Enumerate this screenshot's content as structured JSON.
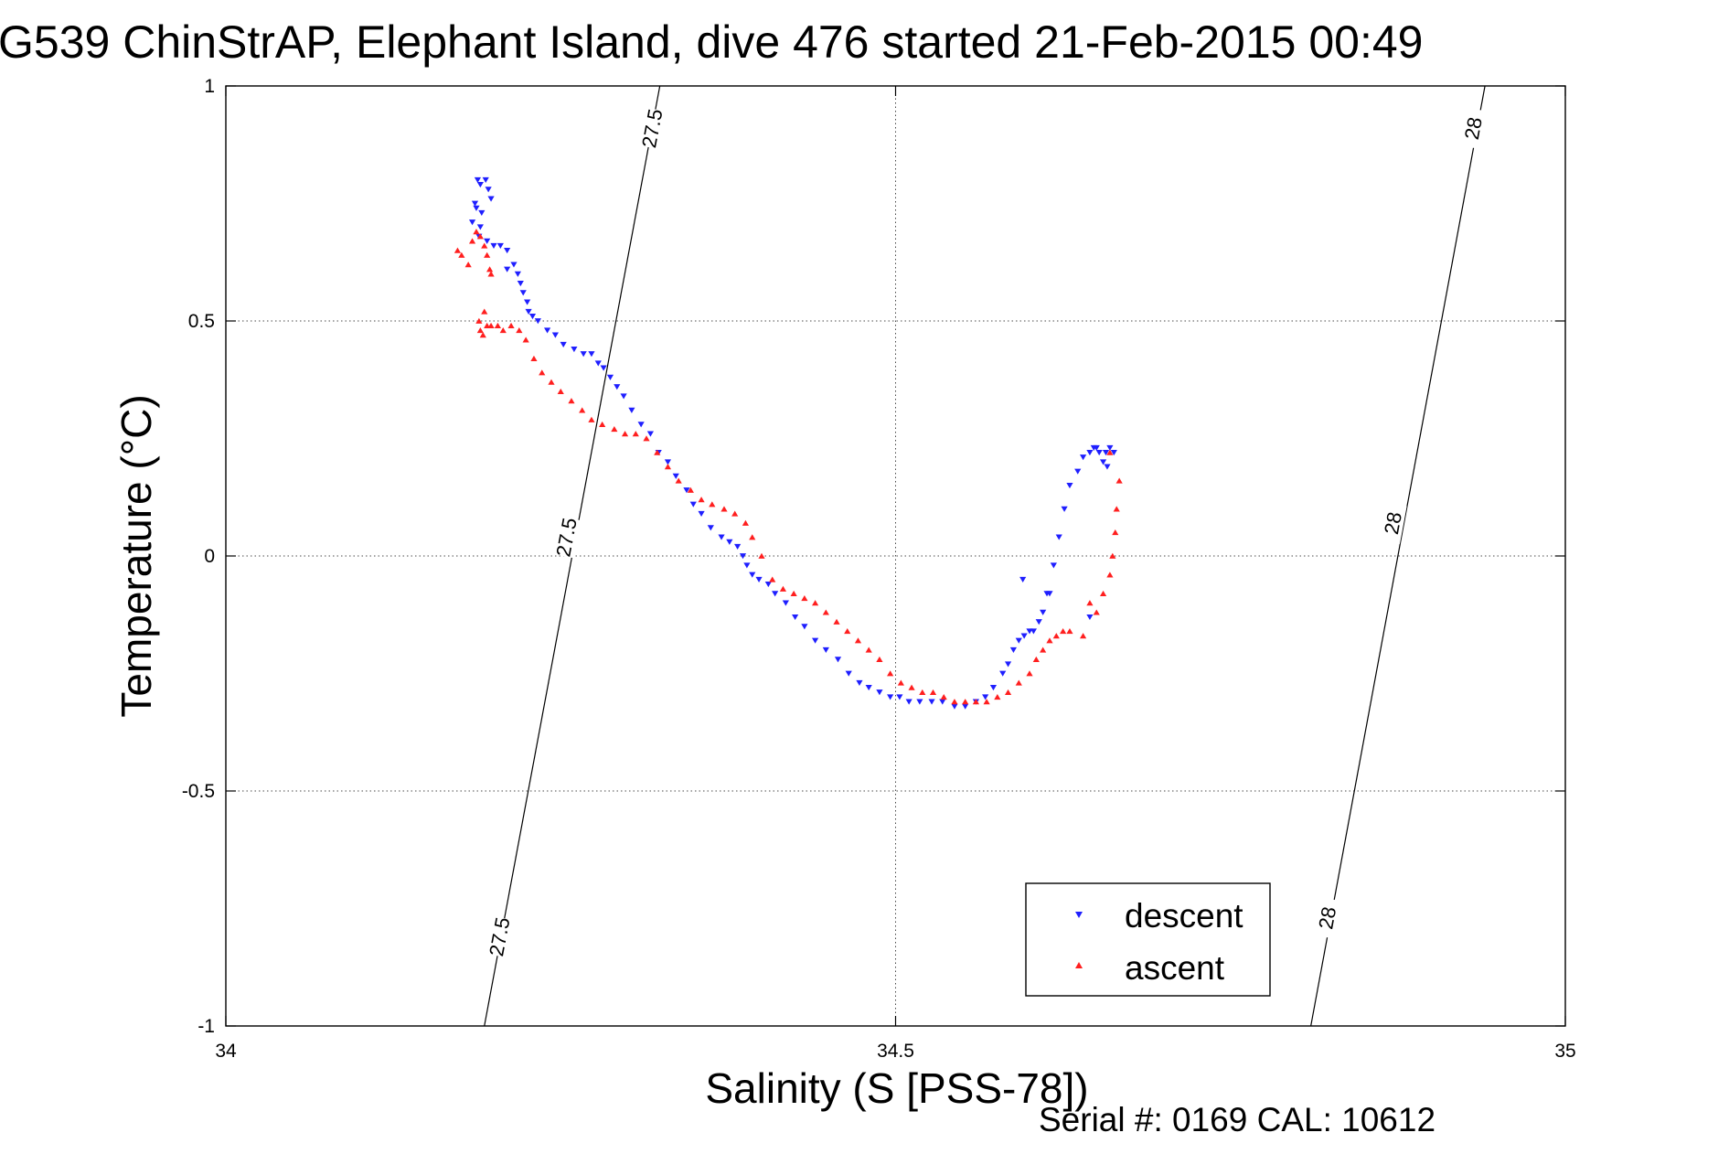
{
  "colors": {
    "descent": "#1f1fff",
    "ascent": "#ff1f1f",
    "contour": "#000000",
    "grid": "#4a4a4a",
    "background": "#ffffff"
  },
  "footer": {
    "serial": "Serial #: 0169 CAL: 10612"
  },
  "chart_data": {
    "type": "scatter",
    "title": "G539 ChinStrAP, Elephant Island, dive 476 started 21-Feb-2015 00:49",
    "xlabel": "Salinity (S [PSS-78])",
    "ylabel": "Temperature (°C)",
    "xlim": [
      34,
      35
    ],
    "ylim": [
      -1,
      1
    ],
    "x_ticks": [
      34,
      34.5,
      35
    ],
    "x_tick_labels": [
      "34",
      "34.5",
      "35"
    ],
    "y_ticks": [
      1,
      0.5,
      0,
      -0.5,
      -1
    ],
    "y_tick_labels": [
      "1",
      "0.5",
      "0",
      "-0.5",
      "-1"
    ],
    "grid": true,
    "legend_position": "bottom-right",
    "markers": {
      "descent": "triangle-down",
      "ascent": "triangle-up"
    },
    "density_contours": [
      {
        "label": "27.5",
        "x": [
          34.193,
          34.324
        ],
        "y": [
          -1,
          1
        ],
        "label_points": [
          {
            "x": 34.204,
            "y": -0.81
          },
          {
            "x": 34.254,
            "y": 0.04
          },
          {
            "x": 34.318,
            "y": 0.91
          }
        ]
      },
      {
        "label": "28",
        "x": [
          34.81,
          34.94
        ],
        "y": [
          -1,
          1
        ],
        "label_points": [
          {
            "x": 34.822,
            "y": -0.77
          },
          {
            "x": 34.871,
            "y": 0.07
          },
          {
            "x": 34.931,
            "y": 0.91
          }
        ]
      }
    ],
    "series": [
      {
        "name": "descent",
        "type": "scatter",
        "marker": "triangle-down",
        "x": [
          34.188,
          34.19,
          34.194,
          34.196,
          34.198,
          34.187,
          34.186,
          34.191,
          34.184,
          34.19,
          34.189,
          34.195,
          34.2,
          34.205,
          34.21,
          34.215,
          34.21,
          34.218,
          34.22,
          34.222,
          34.225,
          34.226,
          34.229,
          34.233,
          34.24,
          34.246,
          34.252,
          34.26,
          34.267,
          34.273,
          34.278,
          34.282,
          34.287,
          34.292,
          34.297,
          34.303,
          34.31,
          34.317,
          34.323,
          34.33,
          34.336,
          34.344,
          34.349,
          34.355,
          34.362,
          34.37,
          34.376,
          34.382,
          34.386,
          34.389,
          34.393,
          34.398,
          34.405,
          34.41,
          34.418,
          34.425,
          34.432,
          34.44,
          34.448,
          34.457,
          34.465,
          34.473,
          34.48,
          34.488,
          34.496,
          34.503,
          34.51,
          34.518,
          34.527,
          34.535,
          34.544,
          34.552,
          34.56,
          34.567,
          34.573,
          34.58,
          34.584,
          34.588,
          34.592,
          34.596,
          34.6,
          34.603,
          34.607,
          34.61,
          34.613,
          34.618,
          34.622,
          34.626,
          34.63,
          34.636,
          34.64,
          34.645,
          34.648,
          34.65,
          34.652,
          34.655,
          34.657,
          34.66,
          34.663,
          34.658,
          34.645,
          34.615,
          34.595
        ],
        "y": [
          0.8,
          0.79,
          0.8,
          0.78,
          0.76,
          0.74,
          0.75,
          0.73,
          0.71,
          0.7,
          0.68,
          0.67,
          0.66,
          0.66,
          0.65,
          0.62,
          0.61,
          0.6,
          0.58,
          0.56,
          0.54,
          0.52,
          0.51,
          0.5,
          0.48,
          0.47,
          0.45,
          0.44,
          0.43,
          0.43,
          0.41,
          0.4,
          0.38,
          0.36,
          0.34,
          0.31,
          0.28,
          0.26,
          0.22,
          0.2,
          0.17,
          0.14,
          0.11,
          0.09,
          0.06,
          0.04,
          0.03,
          0.02,
          0.0,
          -0.02,
          -0.04,
          -0.05,
          -0.06,
          -0.08,
          -0.1,
          -0.13,
          -0.15,
          -0.18,
          -0.2,
          -0.22,
          -0.25,
          -0.27,
          -0.28,
          -0.29,
          -0.3,
          -0.3,
          -0.31,
          -0.31,
          -0.31,
          -0.31,
          -0.32,
          -0.32,
          -0.31,
          -0.3,
          -0.28,
          -0.25,
          -0.23,
          -0.2,
          -0.18,
          -0.17,
          -0.16,
          -0.16,
          -0.14,
          -0.12,
          -0.08,
          -0.02,
          0.04,
          0.1,
          0.15,
          0.18,
          0.21,
          0.22,
          0.23,
          0.23,
          0.22,
          0.2,
          0.22,
          0.23,
          0.22,
          0.19,
          -0.13,
          -0.08,
          -0.05
        ]
      },
      {
        "name": "ascent",
        "type": "scatter",
        "marker": "triangle-up",
        "x": [
          34.173,
          34.176,
          34.181,
          34.184,
          34.187,
          34.19,
          34.193,
          34.195,
          34.197,
          34.198,
          34.193,
          34.189,
          34.19,
          34.192,
          34.195,
          34.198,
          34.203,
          34.207,
          34.213,
          34.219,
          34.224,
          34.23,
          34.236,
          34.243,
          34.25,
          34.258,
          34.266,
          34.273,
          34.281,
          34.29,
          34.298,
          34.306,
          34.314,
          34.322,
          34.33,
          34.338,
          34.347,
          34.355,
          34.363,
          34.372,
          34.38,
          34.388,
          34.393,
          34.4,
          34.408,
          34.416,
          34.424,
          34.432,
          34.44,
          34.448,
          34.456,
          34.464,
          34.472,
          34.48,
          34.488,
          34.496,
          34.504,
          34.512,
          34.52,
          34.528,
          34.536,
          34.544,
          34.552,
          34.56,
          34.568,
          34.576,
          34.584,
          34.592,
          34.6,
          34.605,
          34.61,
          34.615,
          34.62,
          34.625,
          34.63,
          34.64,
          34.65,
          34.655,
          34.66,
          34.662,
          34.664,
          34.665,
          34.667,
          34.66,
          34.645
        ],
        "y": [
          0.65,
          0.64,
          0.62,
          0.67,
          0.69,
          0.68,
          0.66,
          0.64,
          0.61,
          0.6,
          0.52,
          0.5,
          0.48,
          0.47,
          0.49,
          0.49,
          0.49,
          0.48,
          0.49,
          0.48,
          0.46,
          0.42,
          0.39,
          0.37,
          0.35,
          0.33,
          0.31,
          0.29,
          0.28,
          0.27,
          0.26,
          0.26,
          0.25,
          0.22,
          0.19,
          0.16,
          0.14,
          0.12,
          0.11,
          0.1,
          0.09,
          0.07,
          0.04,
          0.0,
          -0.05,
          -0.07,
          -0.08,
          -0.09,
          -0.1,
          -0.12,
          -0.14,
          -0.16,
          -0.18,
          -0.2,
          -0.22,
          -0.25,
          -0.27,
          -0.28,
          -0.29,
          -0.29,
          -0.3,
          -0.31,
          -0.31,
          -0.31,
          -0.31,
          -0.3,
          -0.29,
          -0.27,
          -0.25,
          -0.22,
          -0.2,
          -0.18,
          -0.17,
          -0.16,
          -0.16,
          -0.17,
          -0.12,
          -0.08,
          -0.04,
          0.0,
          0.05,
          0.1,
          0.16,
          0.22,
          -0.1
        ]
      }
    ]
  }
}
